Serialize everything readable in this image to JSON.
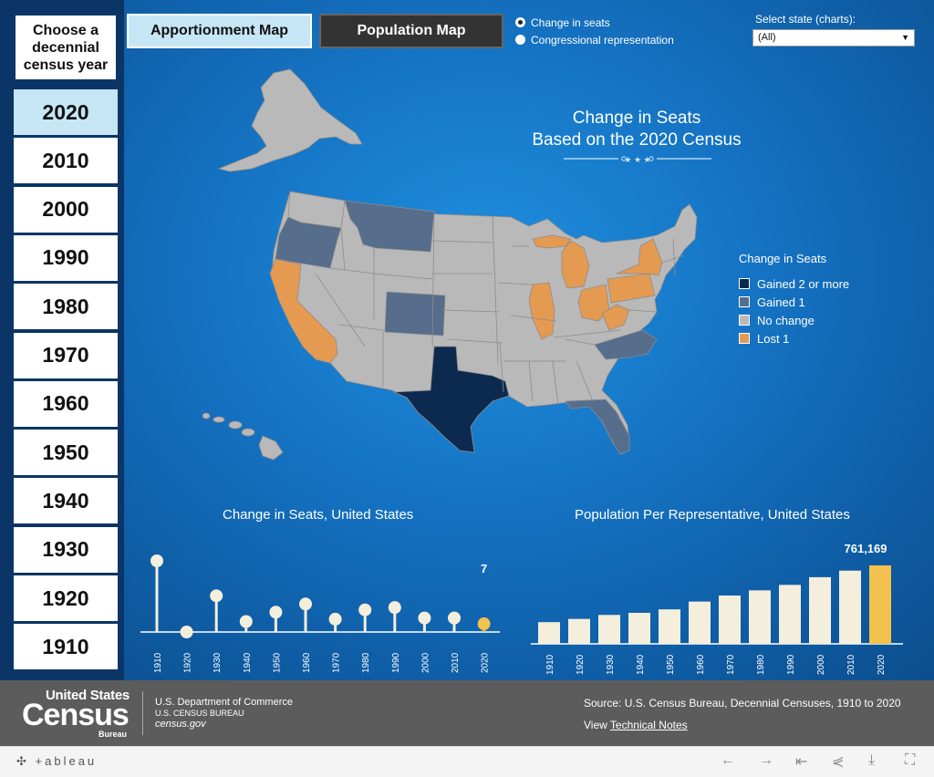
{
  "sidebar": {
    "header": "Choose a decennial census year",
    "years": [
      "2020",
      "2010",
      "2000",
      "1990",
      "1980",
      "1970",
      "1960",
      "1950",
      "1940",
      "1930",
      "1920",
      "1910"
    ],
    "active": "2020"
  },
  "tabs": {
    "apportionment": "Apportionment Map",
    "population": "Population Map"
  },
  "radios": [
    {
      "label": "Change in seats",
      "selected": true
    },
    {
      "label": "Congressional representation",
      "selected": false
    }
  ],
  "state_select": {
    "label": "Select state (charts):",
    "value": "(All)"
  },
  "map": {
    "title_line1": "Change in Seats",
    "title_line2": "Based on the 2020 Census",
    "colors": {
      "gained2": "#0c2a4f",
      "gained1": "#566d8c",
      "nochange": "#b9b9b9",
      "lost1": "#e59a52"
    }
  },
  "legend": {
    "title": "Change in Seats",
    "items": [
      {
        "label": "Gained 2 or more",
        "color": "#0c2a4f"
      },
      {
        "label": "Gained 1",
        "color": "#566d8c"
      },
      {
        "label": "No change",
        "color": "#b9b9b9"
      },
      {
        "label": "Lost 1",
        "color": "#e59a52"
      }
    ]
  },
  "charts": {
    "lollipop_title": "Change in Seats, United States",
    "bar_title": "Population Per Representative, United States"
  },
  "chart_data": [
    {
      "type": "scatter",
      "title": "Change in Seats, United States",
      "x": [
        "1910",
        "1920",
        "1930",
        "1940",
        "1950",
        "1960",
        "1970",
        "1980",
        "1990",
        "2000",
        "2010",
        "2020"
      ],
      "values": [
        61,
        0,
        31,
        9,
        17,
        24,
        11,
        19,
        21,
        12,
        12,
        7
      ],
      "highlight_index": 11,
      "highlight_label": "7",
      "colors": {
        "normal": "#f4efdc",
        "highlight": "#f2c14e"
      }
    },
    {
      "type": "bar",
      "title": "Population Per Representative, United States",
      "categories": [
        "1910",
        "1920",
        "1930",
        "1940",
        "1950",
        "1960",
        "1970",
        "1980",
        "1990",
        "2000",
        "2010",
        "2020"
      ],
      "values": [
        210583,
        242000,
        280675,
        301164,
        334587,
        410481,
        469088,
        519235,
        572466,
        646952,
        710767,
        761169
      ],
      "highlight_index": 11,
      "highlight_label": "761,169",
      "colors": {
        "normal": "#f4efdc",
        "highlight": "#f2c14e"
      }
    }
  ],
  "footer": {
    "logo_top": "United States",
    "logo_main": "Census",
    "logo_bottom": "Bureau",
    "dept_line1": "U.S. Department of Commerce",
    "dept_line2": "U.S. CENSUS BUREAU",
    "dept_line3": "census.gov",
    "source": "Source: U.S. Census Bureau, Decennial Censuses, 1910 to 2020",
    "view_prefix": "View",
    "view_link": "Technical Notes"
  },
  "toolbar": {
    "brand": "+ableau"
  }
}
